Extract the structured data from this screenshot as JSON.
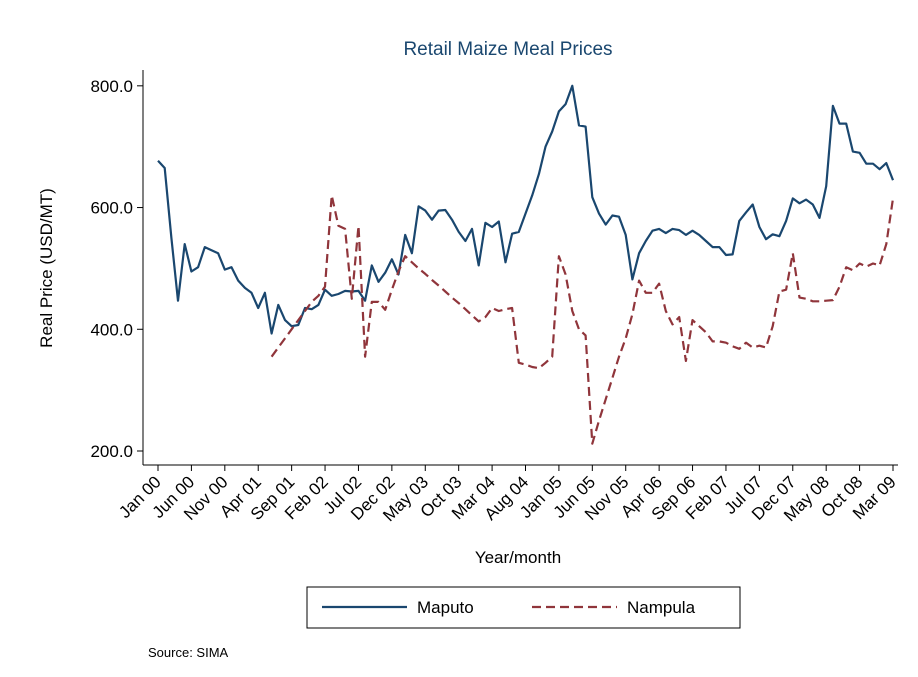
{
  "chart_data": {
    "type": "line",
    "title": "Retail Maize Meal Prices",
    "x_label": "Year/month",
    "y_label": "Real Price (USD/MT)",
    "note": "Source: SIMA",
    "categories": [
      "Jan 00",
      null,
      null,
      null,
      null,
      "Jun 00",
      null,
      null,
      null,
      null,
      "Nov 00",
      null,
      null,
      null,
      null,
      "Apr 01",
      null,
      null,
      null,
      null,
      "Sep 01",
      null,
      null,
      null,
      null,
      "Feb 02",
      null,
      null,
      null,
      null,
      "Jul 02",
      null,
      null,
      null,
      null,
      "Dec 02",
      null,
      null,
      null,
      null,
      "May 03",
      null,
      null,
      null,
      null,
      "Oct 03",
      null,
      null,
      null,
      null,
      "Mar 04",
      null,
      null,
      null,
      null,
      "Aug 04",
      null,
      null,
      null,
      null,
      "Jan 05",
      null,
      null,
      null,
      null,
      "Jun 05",
      null,
      null,
      null,
      null,
      "Nov 05",
      null,
      null,
      null,
      null,
      "Apr 06",
      null,
      null,
      null,
      null,
      "Sep 06",
      null,
      null,
      null,
      null,
      "Feb 07",
      null,
      null,
      null,
      null,
      "Jul 07",
      null,
      null,
      null,
      null,
      "Dec 07",
      null,
      null,
      null,
      null,
      "May 08",
      null,
      null,
      null,
      null,
      "Oct 08",
      null,
      null,
      null,
      null,
      "Mar 09"
    ],
    "series": [
      {
        "name": "Maputo",
        "color": "#1a476f",
        "dash": "none",
        "values": [
          677,
          665,
          550,
          447,
          540,
          495,
          502,
          535,
          530,
          525,
          498,
          502,
          480,
          468,
          460,
          435,
          460,
          393,
          440,
          415,
          405,
          407,
          435,
          433,
          440,
          465,
          455,
          458,
          463,
          462,
          463,
          447,
          505,
          478,
          493,
          515,
          490,
          555,
          525,
          602,
          595,
          580,
          595,
          596,
          580,
          560,
          545,
          565,
          505,
          575,
          568,
          577,
          510,
          557,
          560,
          590,
          620,
          655,
          700,
          725,
          758,
          770,
          800,
          735,
          733,
          617,
          590,
          572,
          587,
          585,
          555,
          482,
          525,
          545,
          562,
          565,
          558,
          565,
          563,
          555,
          562,
          555,
          545,
          535,
          535,
          522,
          523,
          578,
          592,
          605,
          568,
          548,
          556,
          553,
          578,
          615,
          607,
          613,
          605,
          583,
          635,
          767,
          738,
          738,
          692,
          690,
          672,
          672,
          663,
          673,
          645
        ]
      },
      {
        "name": "Nampula",
        "color": "#90353b",
        "dash": "dashed",
        "values": [
          null,
          null,
          null,
          null,
          null,
          null,
          null,
          null,
          null,
          null,
          null,
          null,
          null,
          null,
          null,
          null,
          null,
          355,
          370,
          385,
          400,
          415,
          430,
          445,
          455,
          470,
          620,
          570,
          565,
          450,
          570,
          355,
          445,
          445,
          432,
          465,
          495,
          520,
          510,
          500,
          491,
          481,
          472,
          462,
          452,
          443,
          433,
          423,
          413,
          420,
          435,
          430,
          433,
          435,
          345,
          342,
          338,
          336,
          345,
          355,
          520,
          490,
          430,
          400,
          390,
          212,
          250,
          285,
          320,
          355,
          385,
          425,
          480,
          460,
          460,
          475,
          430,
          408,
          420,
          348,
          415,
          405,
          395,
          380,
          380,
          378,
          372,
          368,
          378,
          370,
          373,
          370,
          405,
          462,
          465,
          525,
          452,
          450,
          446,
          446,
          447,
          448,
          470,
          502,
          497,
          508,
          503,
          508,
          505,
          540,
          615
        ]
      }
    ],
    "ylim": [
      177,
      826
    ],
    "yticks": [
      {
        "value": 200,
        "label": "200.0"
      },
      {
        "value": 400,
        "label": "400.0"
      },
      {
        "value": 600,
        "label": "600.0"
      },
      {
        "value": 800,
        "label": "800.0"
      }
    ],
    "grid": false,
    "legend": "bottom"
  }
}
